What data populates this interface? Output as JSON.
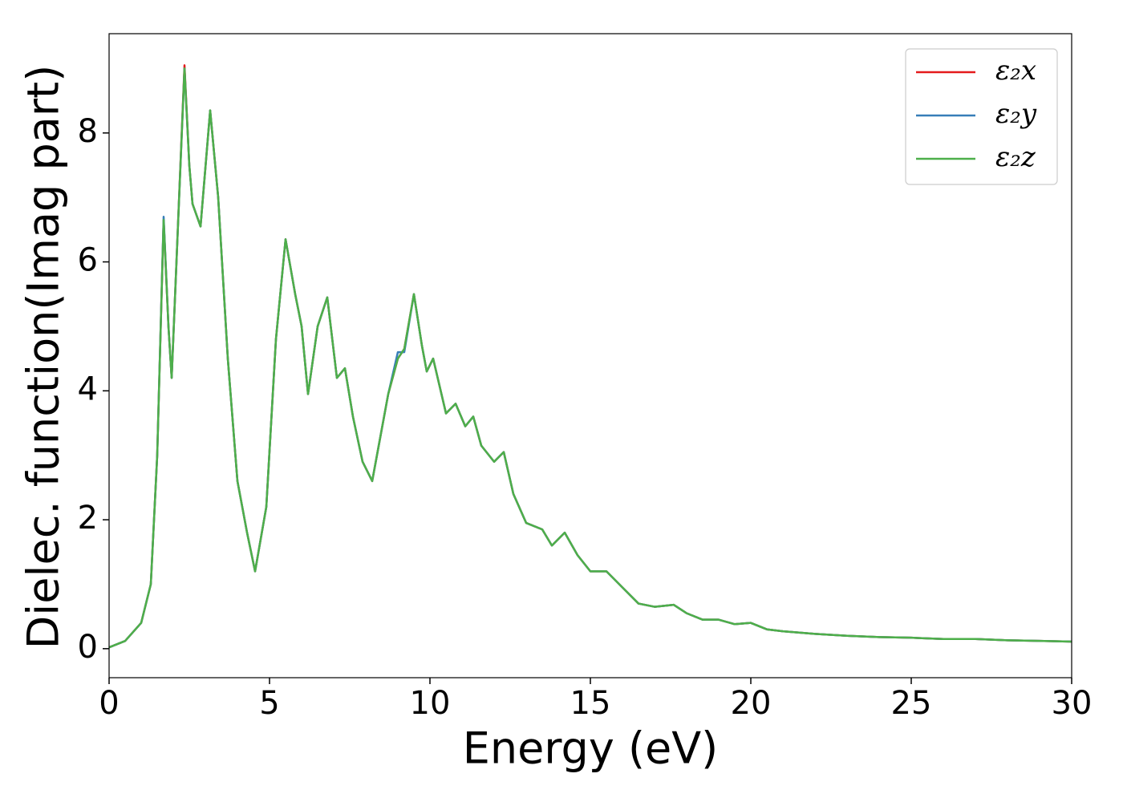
{
  "chart_data": {
    "type": "line",
    "xlabel": "Energy (eV)",
    "ylabel": "Dielec. function(Imag part)",
    "x": [
      0,
      0.5,
      1.0,
      1.3,
      1.5,
      1.7,
      1.85,
      1.95,
      2.1,
      2.35,
      2.5,
      2.6,
      2.85,
      3.15,
      3.4,
      3.7,
      4.0,
      4.3,
      4.55,
      4.9,
      5.2,
      5.5,
      5.8,
      6.0,
      6.2,
      6.5,
      6.8,
      7.1,
      7.35,
      7.6,
      7.9,
      8.2,
      8.7,
      9.0,
      9.2,
      9.5,
      9.75,
      9.9,
      10.1,
      10.5,
      10.8,
      11.1,
      11.35,
      11.6,
      12.0,
      12.3,
      12.6,
      13.0,
      13.5,
      13.8,
      14.2,
      14.6,
      15.0,
      15.5,
      16.0,
      16.5,
      17.0,
      17.6,
      18.0,
      18.5,
      19.0,
      19.5,
      20.0,
      20.5,
      21.0,
      22.0,
      23.0,
      24.0,
      25.0,
      26.0,
      27.0,
      28.0,
      29.0,
      30.0
    ],
    "series": [
      {
        "name": "ε₂x",
        "color": "#e41a1c",
        "values": [
          0.02,
          0.12,
          0.4,
          1.0,
          3.0,
          6.65,
          5.0,
          4.2,
          6.0,
          9.05,
          7.5,
          6.9,
          6.55,
          8.35,
          7.0,
          4.5,
          2.6,
          1.8,
          1.2,
          2.2,
          4.8,
          6.35,
          5.5,
          5.0,
          3.95,
          5.0,
          5.45,
          4.2,
          4.35,
          3.6,
          2.9,
          2.6,
          3.95,
          4.5,
          4.65,
          5.5,
          4.7,
          4.3,
          4.5,
          3.65,
          3.8,
          3.45,
          3.6,
          3.15,
          2.9,
          3.05,
          2.4,
          1.95,
          1.85,
          1.6,
          1.8,
          1.45,
          1.2,
          1.2,
          0.95,
          0.7,
          0.65,
          0.68,
          0.55,
          0.45,
          0.45,
          0.38,
          0.4,
          0.3,
          0.27,
          0.23,
          0.2,
          0.18,
          0.17,
          0.15,
          0.15,
          0.13,
          0.12,
          0.11
        ]
      },
      {
        "name": "ε₂y",
        "color": "#377eb8",
        "values": [
          0.02,
          0.12,
          0.4,
          1.0,
          3.0,
          6.7,
          5.0,
          4.2,
          6.0,
          9.0,
          7.5,
          6.9,
          6.55,
          8.35,
          7.0,
          4.5,
          2.6,
          1.8,
          1.2,
          2.2,
          4.8,
          6.35,
          5.5,
          5.0,
          3.95,
          5.0,
          5.45,
          4.2,
          4.35,
          3.6,
          2.9,
          2.6,
          3.95,
          4.6,
          4.6,
          5.5,
          4.7,
          4.3,
          4.5,
          3.65,
          3.8,
          3.45,
          3.6,
          3.15,
          2.9,
          3.05,
          2.4,
          1.95,
          1.85,
          1.6,
          1.8,
          1.45,
          1.2,
          1.2,
          0.95,
          0.7,
          0.65,
          0.68,
          0.55,
          0.45,
          0.45,
          0.38,
          0.4,
          0.3,
          0.27,
          0.23,
          0.2,
          0.18,
          0.17,
          0.15,
          0.15,
          0.13,
          0.12,
          0.11
        ]
      },
      {
        "name": "ε₂z",
        "color": "#4daf4a",
        "values": [
          0.02,
          0.12,
          0.4,
          1.0,
          3.0,
          6.65,
          5.0,
          4.2,
          6.0,
          9.0,
          7.5,
          6.9,
          6.55,
          8.35,
          7.0,
          4.5,
          2.6,
          1.8,
          1.2,
          2.2,
          4.8,
          6.35,
          5.5,
          5.0,
          3.95,
          5.0,
          5.45,
          4.2,
          4.35,
          3.6,
          2.9,
          2.6,
          3.95,
          4.5,
          4.65,
          5.5,
          4.7,
          4.3,
          4.5,
          3.65,
          3.8,
          3.45,
          3.6,
          3.15,
          2.9,
          3.05,
          2.4,
          1.95,
          1.85,
          1.6,
          1.8,
          1.45,
          1.2,
          1.2,
          0.95,
          0.7,
          0.65,
          0.68,
          0.55,
          0.45,
          0.45,
          0.38,
          0.4,
          0.3,
          0.27,
          0.23,
          0.2,
          0.18,
          0.17,
          0.15,
          0.15,
          0.13,
          0.12,
          0.11
        ]
      }
    ],
    "xlim": [
      0,
      30
    ],
    "xticks": [
      0,
      5,
      10,
      15,
      20,
      25,
      30
    ],
    "ylim": [
      -0.45,
      9.54
    ],
    "yticks": [
      0,
      2,
      4,
      6,
      8
    ],
    "grid": false,
    "legend": "upper right"
  }
}
